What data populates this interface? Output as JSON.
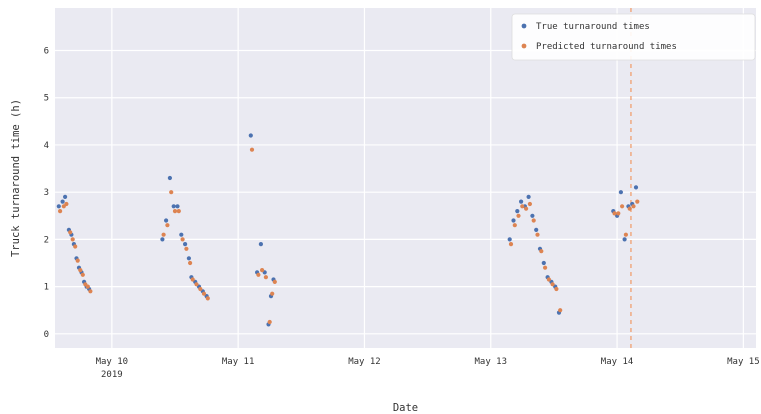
{
  "chart_data": {
    "type": "scatter",
    "title": "",
    "xlabel": "Date",
    "ylabel": "Truck turnaround time (h)",
    "x_unit": "days since 2019-05-09 00:00",
    "xlim": [
      0.55,
      6.1
    ],
    "ylim": [
      -0.3,
      6.9
    ],
    "x_ticks": [
      {
        "x": 1.0,
        "label": "May 10",
        "sublabel": "2019"
      },
      {
        "x": 2.0,
        "label": "May 11"
      },
      {
        "x": 3.0,
        "label": "May 12"
      },
      {
        "x": 4.0,
        "label": "May 13"
      },
      {
        "x": 5.0,
        "label": "May 14"
      },
      {
        "x": 6.0,
        "label": "May 15"
      }
    ],
    "y_ticks": [
      0,
      1,
      2,
      3,
      4,
      5,
      6
    ],
    "grid": true,
    "background": "#eaeaf2",
    "vline": {
      "x": 5.11,
      "color": "#f0a070",
      "style": "dashed"
    },
    "legend": {
      "position": "top-right"
    },
    "series": [
      {
        "name": "True turnaround times",
        "color": "#4c72b0",
        "points": [
          [
            0.58,
            2.7
          ],
          [
            0.61,
            2.8
          ],
          [
            0.63,
            2.9
          ],
          [
            0.66,
            2.2
          ],
          [
            0.68,
            2.1
          ],
          [
            0.7,
            1.9
          ],
          [
            0.72,
            1.6
          ],
          [
            0.74,
            1.4
          ],
          [
            0.76,
            1.3
          ],
          [
            0.78,
            1.1
          ],
          [
            0.8,
            1.0
          ],
          [
            0.82,
            0.95
          ],
          [
            1.4,
            2.0
          ],
          [
            1.43,
            2.4
          ],
          [
            1.46,
            3.3
          ],
          [
            1.49,
            2.7
          ],
          [
            1.52,
            2.7
          ],
          [
            1.55,
            2.1
          ],
          [
            1.58,
            1.9
          ],
          [
            1.61,
            1.6
          ],
          [
            1.63,
            1.2
          ],
          [
            1.66,
            1.1
          ],
          [
            1.69,
            1.0
          ],
          [
            1.72,
            0.9
          ],
          [
            1.75,
            0.8
          ],
          [
            2.1,
            4.2
          ],
          [
            2.15,
            1.3
          ],
          [
            2.18,
            1.9
          ],
          [
            2.21,
            1.3
          ],
          [
            2.24,
            0.2
          ],
          [
            2.26,
            0.8
          ],
          [
            2.28,
            1.15
          ],
          [
            4.15,
            2.0
          ],
          [
            4.18,
            2.4
          ],
          [
            4.21,
            2.6
          ],
          [
            4.24,
            2.8
          ],
          [
            4.27,
            2.7
          ],
          [
            4.3,
            2.9
          ],
          [
            4.33,
            2.5
          ],
          [
            4.36,
            2.2
          ],
          [
            4.39,
            1.8
          ],
          [
            4.42,
            1.5
          ],
          [
            4.45,
            1.2
          ],
          [
            4.48,
            1.1
          ],
          [
            4.51,
            1.0
          ],
          [
            4.54,
            0.45
          ],
          [
            4.97,
            2.6
          ],
          [
            5.0,
            2.5
          ],
          [
            5.03,
            3.0
          ],
          [
            5.06,
            2.0
          ],
          [
            5.09,
            2.7
          ],
          [
            5.12,
            2.75
          ],
          [
            5.15,
            3.1
          ]
        ]
      },
      {
        "name": "Predicted turnaround times",
        "color": "#dd8452",
        "points": [
          [
            0.59,
            2.6
          ],
          [
            0.62,
            2.7
          ],
          [
            0.64,
            2.75
          ],
          [
            0.67,
            2.15
          ],
          [
            0.69,
            2.0
          ],
          [
            0.71,
            1.85
          ],
          [
            0.73,
            1.55
          ],
          [
            0.75,
            1.35
          ],
          [
            0.77,
            1.25
          ],
          [
            0.79,
            1.05
          ],
          [
            0.81,
            1.0
          ],
          [
            0.83,
            0.9
          ],
          [
            1.41,
            2.1
          ],
          [
            1.44,
            2.3
          ],
          [
            1.47,
            3.0
          ],
          [
            1.5,
            2.6
          ],
          [
            1.53,
            2.6
          ],
          [
            1.56,
            2.0
          ],
          [
            1.59,
            1.8
          ],
          [
            1.62,
            1.5
          ],
          [
            1.64,
            1.15
          ],
          [
            1.67,
            1.05
          ],
          [
            1.7,
            0.95
          ],
          [
            1.73,
            0.85
          ],
          [
            1.76,
            0.75
          ],
          [
            2.11,
            3.9
          ],
          [
            2.16,
            1.25
          ],
          [
            2.19,
            1.35
          ],
          [
            2.22,
            1.2
          ],
          [
            2.25,
            0.25
          ],
          [
            2.27,
            0.85
          ],
          [
            2.29,
            1.1
          ],
          [
            4.16,
            1.9
          ],
          [
            4.19,
            2.3
          ],
          [
            4.22,
            2.5
          ],
          [
            4.25,
            2.7
          ],
          [
            4.28,
            2.65
          ],
          [
            4.31,
            2.75
          ],
          [
            4.34,
            2.4
          ],
          [
            4.37,
            2.1
          ],
          [
            4.4,
            1.75
          ],
          [
            4.43,
            1.4
          ],
          [
            4.46,
            1.15
          ],
          [
            4.49,
            1.05
          ],
          [
            4.52,
            0.95
          ],
          [
            4.55,
            0.5
          ],
          [
            4.98,
            2.55
          ],
          [
            5.01,
            2.55
          ],
          [
            5.04,
            2.7
          ],
          [
            5.07,
            2.1
          ],
          [
            5.1,
            2.65
          ],
          [
            5.13,
            2.7
          ],
          [
            5.16,
            2.8
          ]
        ]
      }
    ]
  }
}
